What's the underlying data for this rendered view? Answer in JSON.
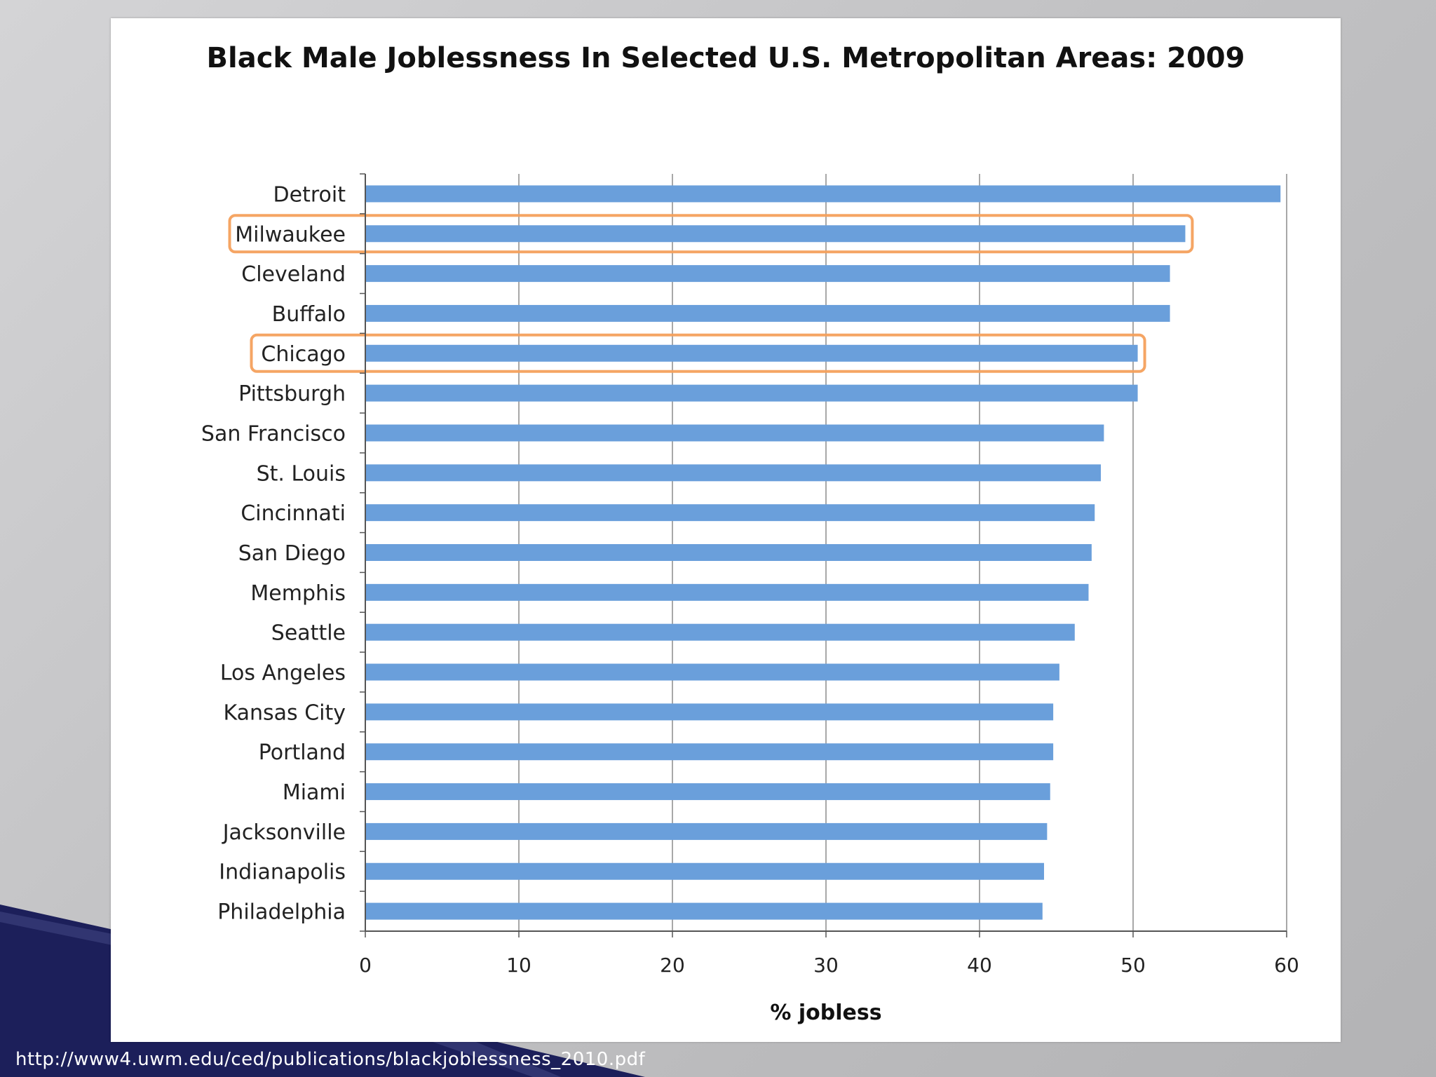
{
  "slide": {
    "source_url": "http://www4.uwm.edu/ced/publications/blackjoblessness_2010.pdf",
    "accent_color": "#1c1f5a"
  },
  "chart_data": {
    "type": "bar",
    "orientation": "horizontal",
    "title": "Black Male Joblessness In Selected U.S. Metropolitan Areas: 2009",
    "xlabel": "% jobless",
    "ylabel": "",
    "xlim": [
      0,
      60
    ],
    "x_ticks": [
      0,
      10,
      20,
      30,
      40,
      50,
      60
    ],
    "grid": true,
    "bar_color": "#6a9fdb",
    "highlight_color": "#f4a05c",
    "highlighted": [
      "Milwaukee",
      "Chicago"
    ],
    "categories": [
      "Detroit",
      "Milwaukee",
      "Cleveland",
      "Buffalo",
      "Chicago",
      "Pittsburgh",
      "San Francisco",
      "St. Louis",
      "Cincinnati",
      "San Diego",
      "Memphis",
      "Seattle",
      "Los Angeles",
      "Kansas City",
      "Portland",
      "Miami",
      "Jacksonville",
      "Indianapolis",
      "Philadelphia"
    ],
    "values": [
      59.6,
      53.4,
      52.4,
      52.4,
      50.3,
      50.3,
      48.1,
      47.9,
      47.5,
      47.3,
      47.1,
      46.2,
      45.2,
      44.8,
      44.8,
      44.6,
      44.4,
      44.2,
      44.1
    ]
  }
}
